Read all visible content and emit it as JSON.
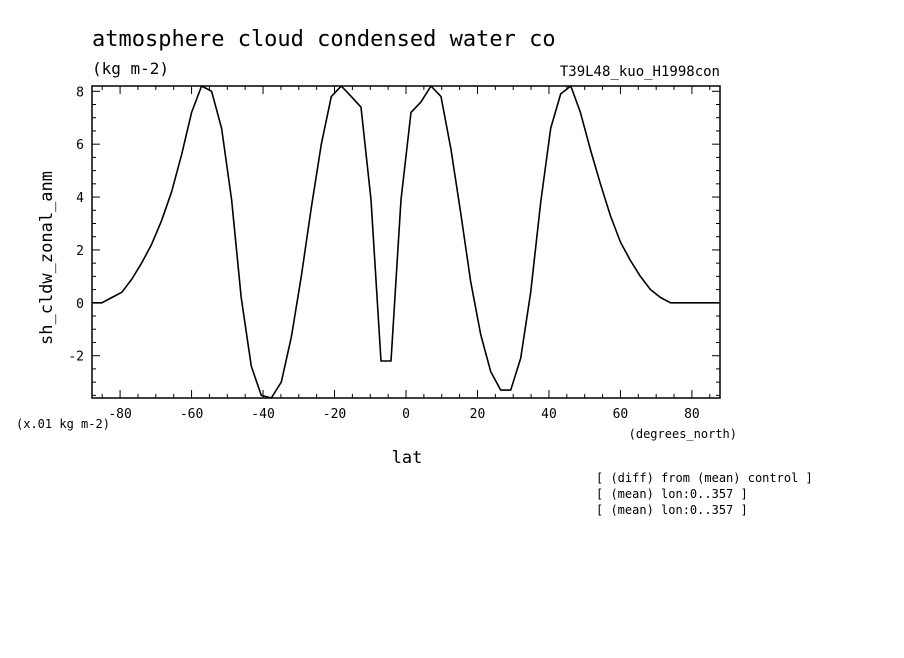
{
  "chart_data": {
    "type": "line",
    "title": "atmosphere cloud condensed water co",
    "units": "(kg m-2)",
    "run_label": "T39L48_kuo_H1998con",
    "xlabel": "lat",
    "ylabel": "sh_cldw_zonal_anm",
    "x_units": "(degrees_north)",
    "y_scale_note": "(x.01 kg m-2)",
    "xlim": [
      -87.86,
      87.86
    ],
    "ylim": [
      -3.6,
      8.2
    ],
    "x_ticks": [
      -80,
      -60,
      -40,
      -20,
      0,
      20,
      40,
      60,
      80
    ],
    "x_tick_labels": [
      "-80",
      "-60",
      "-40",
      "-20",
      "0",
      "20",
      "40",
      "60",
      "80"
    ],
    "y_ticks": [
      -2,
      0,
      2,
      4,
      6,
      8
    ],
    "y_tick_labels": [
      "-2",
      "0",
      "2",
      "4",
      "6",
      "8"
    ],
    "grid": false,
    "line_color": "#000000",
    "series": [
      {
        "x": [
          -87.86,
          -85.1,
          -82.3,
          -79.5,
          -76.7,
          -74.0,
          -71.2,
          -68.4,
          -65.6,
          -62.8,
          -60.0,
          -57.2,
          -54.4,
          -51.6,
          -48.8,
          -46.1,
          -43.3,
          -40.5,
          -37.7,
          -34.9,
          -32.1,
          -29.3,
          -26.5,
          -23.7,
          -20.9,
          -18.1,
          -15.3,
          -12.6,
          -9.8,
          -7.0,
          -4.2,
          -1.4,
          1.4,
          4.2,
          7.0,
          9.8,
          12.6,
          15.3,
          18.1,
          20.9,
          23.7,
          26.5,
          29.3,
          32.1,
          34.9,
          37.7,
          40.5,
          43.3,
          46.1,
          48.8,
          51.6,
          54.4,
          57.2,
          60.0,
          62.8,
          65.6,
          68.4,
          71.2,
          74.0,
          76.7,
          79.5,
          82.3,
          85.1,
          87.86
        ],
        "values": [
          0.0,
          0.0,
          0.2,
          0.4,
          0.9,
          1.5,
          2.2,
          3.1,
          4.2,
          5.6,
          7.2,
          8.2,
          8.0,
          6.6,
          3.9,
          0.2,
          -2.4,
          -3.5,
          -3.6,
          -3.0,
          -1.3,
          1.0,
          3.6,
          6.0,
          7.8,
          8.2,
          7.8,
          7.4,
          3.9,
          -2.2,
          -2.2,
          3.9,
          7.2,
          7.6,
          8.2,
          7.8,
          5.8,
          3.4,
          0.8,
          -1.2,
          -2.6,
          -3.3,
          -3.3,
          -2.1,
          0.4,
          3.8,
          6.6,
          7.9,
          8.2,
          7.2,
          5.8,
          4.5,
          3.3,
          2.3,
          1.6,
          1.0,
          0.5,
          0.2,
          0.0,
          0.0,
          0.0,
          0.0,
          0.0,
          0.0
        ]
      }
    ]
  },
  "notes": [
    "[ (diff) from (mean) control ]",
    "[ (mean) lon:0..357 ]",
    "[ (mean) lon:0..357 ]"
  ]
}
